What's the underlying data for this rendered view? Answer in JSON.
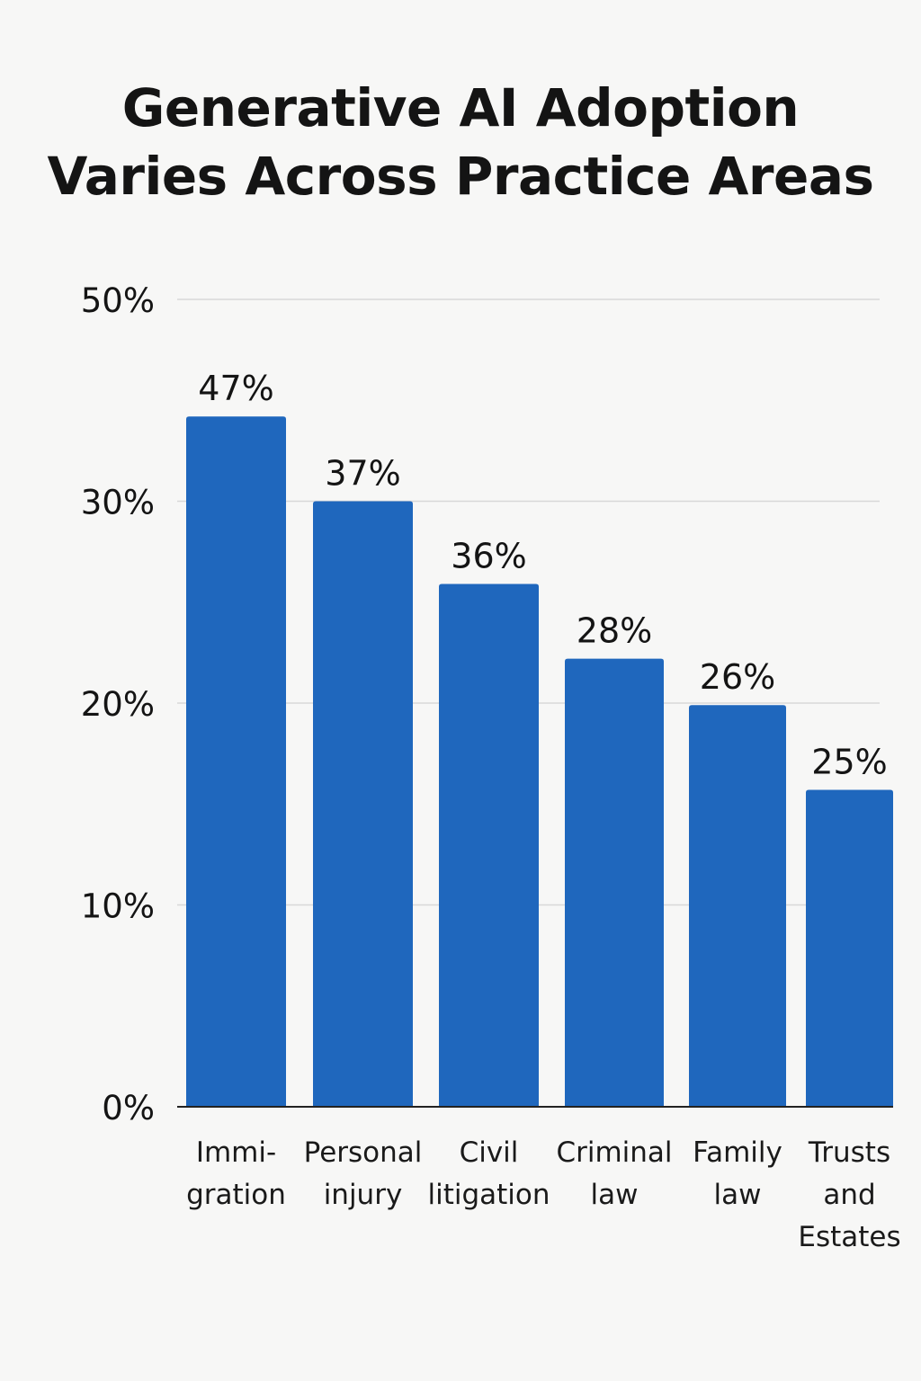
{
  "chart_data": {
    "type": "bar",
    "title_lines": [
      "Generative AI Adoption",
      "Varies Across Practice Areas"
    ],
    "categories": [
      [
        "Immi-",
        "gration"
      ],
      [
        "Personal",
        "injury"
      ],
      [
        "Civil",
        "litigation"
      ],
      [
        "Criminal",
        "law"
      ],
      [
        "Family",
        "law"
      ],
      [
        "Trusts",
        "and",
        "Estates"
      ]
    ],
    "values": [
      47,
      37,
      36,
      28,
      26,
      25
    ],
    "data_labels": [
      "47%",
      "37%",
      "36%",
      "28%",
      "26%",
      "25%"
    ],
    "y_ticks": [
      "50%",
      "30%",
      "20%",
      "10%",
      "0%"
    ],
    "bar_tops_in_tick_units": [
      3.42,
      3.0,
      2.59,
      2.22,
      1.99,
      1.57
    ],
    "grid": true,
    "bar_color": "#1f67bd",
    "grid_color": "#d8d8d8",
    "axis_color": "#222222",
    "xlabel": "",
    "ylabel": ""
  }
}
